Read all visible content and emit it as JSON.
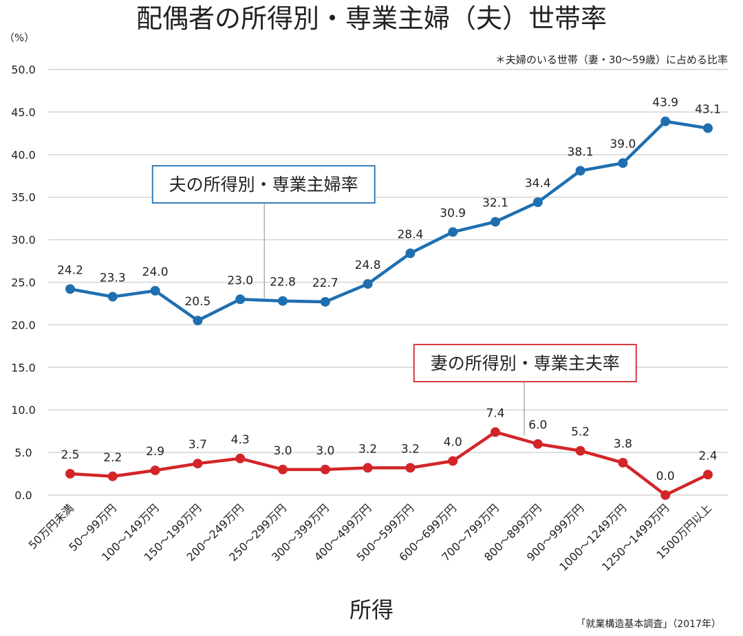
{
  "chart_data": {
    "type": "line",
    "title": "配偶者の所得別・専業主婦（夫）世帯率",
    "subtitle": "＊夫婦のいる世帯（妻・30〜59歳）に占める比率",
    "y_unit": "（%）",
    "xlabel": "所得",
    "source": "「就業構造基本調査」（2017年）",
    "ylim": [
      0,
      50
    ],
    "y_ticks": [
      "0.0",
      "5.0",
      "10.0",
      "15.0",
      "20.0",
      "25.0",
      "30.0",
      "35.0",
      "40.0",
      "45.0",
      "50.0"
    ],
    "grid": true,
    "categories": [
      "50万円未満",
      "50〜99万円",
      "100〜149万円",
      "150〜199万円",
      "200〜249万円",
      "250〜299万円",
      "300〜399万円",
      "400〜499万円",
      "500〜599万円",
      "600〜699万円",
      "700〜799万円",
      "800〜899万円",
      "900〜999万円",
      "1000〜1249万円",
      "1250〜1499万円",
      "1500万円以上"
    ],
    "series": [
      {
        "name": "夫の所得別・専業主婦率",
        "color": "#1f6fb0",
        "values": [
          24.2,
          23.3,
          24.0,
          20.5,
          23.0,
          22.8,
          22.7,
          24.8,
          28.4,
          30.9,
          32.1,
          34.4,
          38.1,
          39.0,
          43.9,
          43.1
        ],
        "labels": [
          "24.2",
          "23.3",
          "24.0",
          "20.5",
          "23.0",
          "22.8",
          "22.7",
          "24.8",
          "28.4",
          "30.9",
          "32.1",
          "34.4",
          "38.1",
          "39.0",
          "43.9",
          "43.1"
        ],
        "callout_value": 36.5,
        "callout_anchor_index": 4,
        "callout_anchor_offset": 0.55
      },
      {
        "name": "妻の所得別・専業主夫率",
        "color": "#d32528",
        "values": [
          2.5,
          2.2,
          2.9,
          3.7,
          4.3,
          3.0,
          3.0,
          3.2,
          3.2,
          4.0,
          7.4,
          6.0,
          5.2,
          3.8,
          0.0,
          2.4
        ],
        "labels": [
          "2.5",
          "2.2",
          "2.9",
          "3.7",
          "4.3",
          "3.0",
          "3.0",
          "3.2",
          "3.2",
          "4.0",
          "7.4",
          "6.0",
          "5.2",
          "3.8",
          "0.0",
          "2.4"
        ],
        "callout_value": 15.5,
        "callout_anchor_index": 10,
        "callout_anchor_offset": 0.7
      }
    ]
  }
}
